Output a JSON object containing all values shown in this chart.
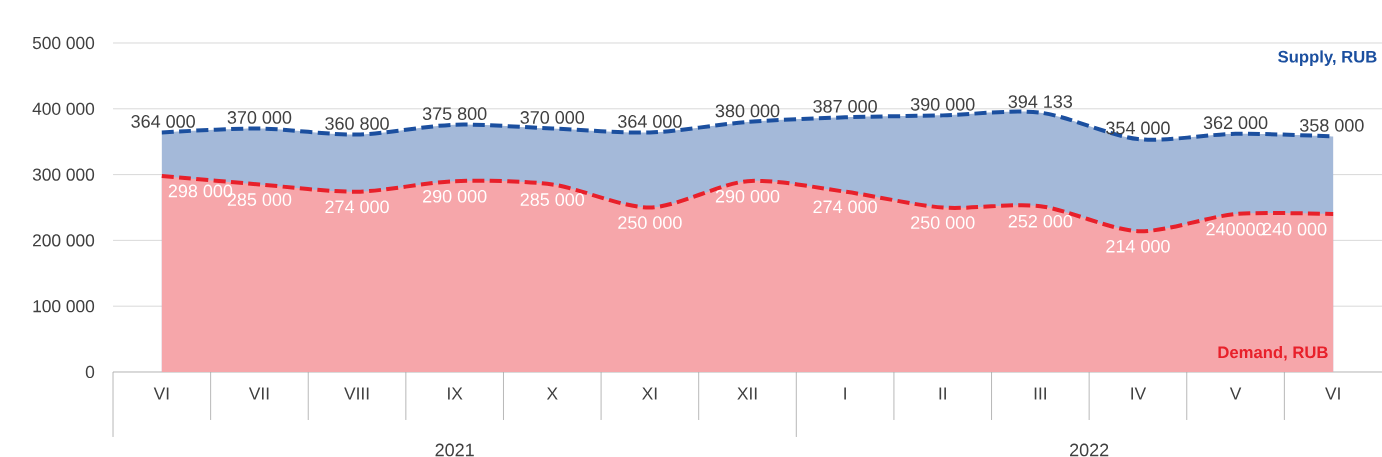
{
  "chart_data": {
    "type": "area",
    "categories": [
      "VI",
      "VII",
      "VIII",
      "IX",
      "X",
      "XI",
      "XII",
      "I",
      "II",
      "III",
      "IV",
      "V",
      "VI"
    ],
    "series": [
      {
        "name": "Supply, RUB",
        "color": "#1b4f9f",
        "values": [
          364000,
          370000,
          360800,
          375800,
          370000,
          364000,
          380000,
          387000,
          390000,
          394133,
          354000,
          362000,
          358000
        ],
        "value_labels": [
          "364 000",
          "370 000",
          "360 800",
          "375 800",
          "370 000",
          "364 000",
          "380 000",
          "387 000",
          "390 000",
          "394 133",
          "354 000",
          "362 000",
          "358 000"
        ]
      },
      {
        "name": "Demand, RUB",
        "color": "#e8202a",
        "values": [
          298000,
          285000,
          274000,
          290000,
          285000,
          250000,
          290000,
          274000,
          250000,
          252000,
          214000,
          240000,
          240000
        ],
        "value_labels": [
          "298 000",
          "285 000",
          "274 000",
          "290 000",
          "285 000",
          "250 000",
          "290 000",
          "274 000",
          "250 000",
          "252 000",
          "214 000",
          "240000",
          "240 000"
        ]
      }
    ],
    "ylim": [
      0,
      500000
    ],
    "yticks": [
      {
        "value": 0,
        "label": "0"
      },
      {
        "value": 100000,
        "label": "100 000"
      },
      {
        "value": 200000,
        "label": "200 000"
      },
      {
        "value": 300000,
        "label": "300 000"
      },
      {
        "value": 400000,
        "label": "400 000"
      },
      {
        "value": 500000,
        "label": "500 000"
      }
    ],
    "grid": "y",
    "line_style": "dashed",
    "annotations": [
      "2021",
      "2022"
    ]
  }
}
